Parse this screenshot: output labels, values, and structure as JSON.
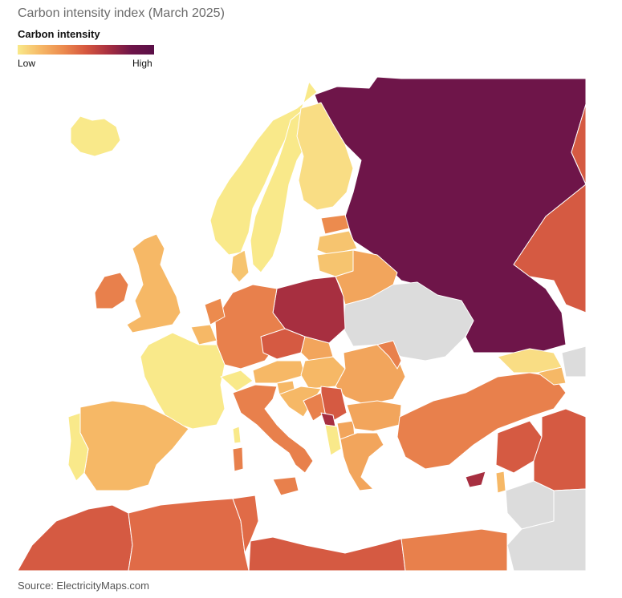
{
  "title": "Carbon intensity index (March 2025)",
  "legend": {
    "title": "Carbon intensity",
    "low_label": "Low",
    "high_label": "High",
    "scale_colors": [
      "#f9e98a",
      "#f6b866",
      "#ec8b4e",
      "#d6573f",
      "#a72f40",
      "#6e1549"
    ]
  },
  "colors": {
    "very_low": "#f9e98a",
    "low": "#f6c46f",
    "mid_low": "#f2a55c",
    "mid": "#e8804c",
    "mid_high": "#d55a42",
    "high": "#a72f40",
    "very_high": "#6e1549",
    "no_data": "#dcdcdc"
  },
  "source": "Source: ElectricityMaps.com"
}
